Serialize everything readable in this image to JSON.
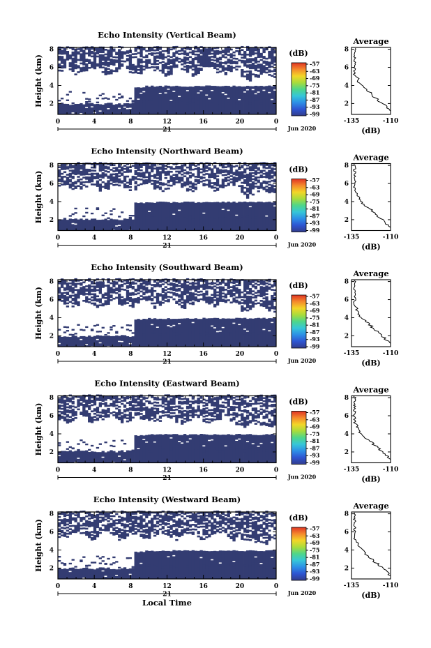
{
  "chart_data": [
    {
      "type": "heatmap",
      "title": "Echo Intensity (Vertical Beam)",
      "xlabel": "",
      "ylabel": "Height (km)",
      "x_ticks": [
        "0",
        "4",
        "8",
        "12",
        "16",
        "20",
        "0"
      ],
      "y_ticks": [
        "2",
        "4",
        "6",
        "8"
      ],
      "date_label": "21",
      "month_year": "Jun 2020",
      "xlim_hours": [
        0,
        24
      ],
      "ylim_km": [
        0.8,
        8.2
      ],
      "colorbar": {
        "unit": "(dB)",
        "ticks": [
          "-57",
          "-63",
          "-69",
          "-75",
          "-81",
          "-87",
          "-93",
          "-99"
        ]
      },
      "average": {
        "title": "Average",
        "xlabel": "(dB)",
        "x_ticks": [
          "-135",
          "-110"
        ],
        "y_ticks": [
          "2",
          "4",
          "6",
          "8"
        ]
      }
    },
    {
      "type": "heatmap",
      "title": "Echo Intensity (Northward Beam)",
      "xlabel": "",
      "ylabel": "Height (km)",
      "x_ticks": [
        "0",
        "4",
        "8",
        "12",
        "16",
        "20",
        "0"
      ],
      "y_ticks": [
        "2",
        "4",
        "6",
        "8"
      ],
      "date_label": "21",
      "month_year": "Jun 2020",
      "xlim_hours": [
        0,
        24
      ],
      "ylim_km": [
        0.8,
        8.2
      ],
      "colorbar": {
        "unit": "(dB)",
        "ticks": [
          "-57",
          "-63",
          "-69",
          "-75",
          "-81",
          "-87",
          "-93",
          "-99"
        ]
      },
      "average": {
        "title": "Average",
        "xlabel": "(dB)",
        "x_ticks": [
          "-135",
          "-110"
        ],
        "y_ticks": [
          "2",
          "4",
          "6",
          "8"
        ]
      }
    },
    {
      "type": "heatmap",
      "title": "Echo Intensity (Southward Beam)",
      "xlabel": "",
      "ylabel": "Height (km)",
      "x_ticks": [
        "0",
        "4",
        "8",
        "12",
        "16",
        "20",
        "0"
      ],
      "y_ticks": [
        "2",
        "4",
        "6",
        "8"
      ],
      "date_label": "21",
      "month_year": "Jun 2020",
      "xlim_hours": [
        0,
        24
      ],
      "ylim_km": [
        0.8,
        8.2
      ],
      "colorbar": {
        "unit": "(dB)",
        "ticks": [
          "-57",
          "-63",
          "-69",
          "-75",
          "-81",
          "-87",
          "-93",
          "-99"
        ]
      },
      "average": {
        "title": "Average",
        "xlabel": "(dB)",
        "x_ticks": [
          "-135",
          "-110"
        ],
        "y_ticks": [
          "2",
          "4",
          "6",
          "8"
        ]
      }
    },
    {
      "type": "heatmap",
      "title": "Echo Intensity (Eastward Beam)",
      "xlabel": "",
      "ylabel": "Height (km)",
      "x_ticks": [
        "0",
        "4",
        "8",
        "12",
        "16",
        "20",
        "0"
      ],
      "y_ticks": [
        "2",
        "4",
        "6",
        "8"
      ],
      "date_label": "21",
      "month_year": "Jun 2020",
      "xlim_hours": [
        0,
        24
      ],
      "ylim_km": [
        0.8,
        8.2
      ],
      "colorbar": {
        "unit": "(dB)",
        "ticks": [
          "-57",
          "-63",
          "-69",
          "-75",
          "-81",
          "-87",
          "-93",
          "-99"
        ]
      },
      "average": {
        "title": "Average",
        "xlabel": "(dB)",
        "x_ticks": [
          "-135",
          "-110"
        ],
        "y_ticks": [
          "2",
          "4",
          "6",
          "8"
        ]
      }
    },
    {
      "type": "heatmap",
      "title": "Echo Intensity (Westward Beam)",
      "xlabel": "Local Time",
      "ylabel": "Height (km)",
      "x_ticks": [
        "0",
        "4",
        "8",
        "12",
        "16",
        "20",
        "0"
      ],
      "y_ticks": [
        "2",
        "4",
        "6",
        "8"
      ],
      "date_label": "21",
      "month_year": "Jun 2020",
      "xlim_hours": [
        0,
        24
      ],
      "ylim_km": [
        0.8,
        8.2
      ],
      "colorbar": {
        "unit": "(dB)",
        "ticks": [
          "-57",
          "-63",
          "-69",
          "-75",
          "-81",
          "-87",
          "-93",
          "-99"
        ]
      },
      "average": {
        "title": "Average",
        "xlabel": "(dB)",
        "x_ticks": [
          "-135",
          "-110"
        ],
        "y_ticks": [
          "2",
          "4",
          "6",
          "8"
        ]
      }
    }
  ],
  "colors": {
    "fill": "#333c72",
    "frame": "#000000",
    "colormap": [
      "#323c8c",
      "#2e55d2",
      "#2d8fe6",
      "#36c6d8",
      "#4ed68a",
      "#a8dc3c",
      "#f3d628",
      "#f58a2c",
      "#e03424"
    ]
  }
}
